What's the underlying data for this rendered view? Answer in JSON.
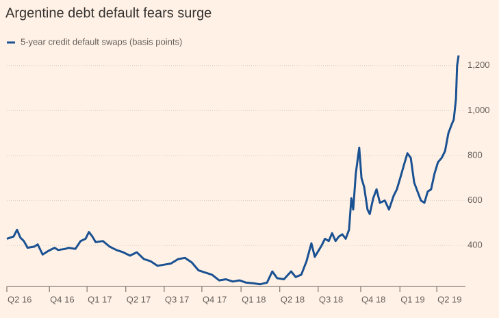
{
  "chart_data": {
    "type": "line",
    "title": "Argentine debt default fears surge",
    "series": [
      {
        "name": "5-year credit default swaps (basis points)",
        "color": "#1a5192",
        "x": [
          0,
          0.18,
          0.27,
          0.36,
          0.45,
          0.55,
          0.73,
          0.82,
          0.95,
          1.09,
          1.27,
          1.36,
          1.55,
          1.64,
          1.82,
          1.96,
          2.09,
          2.18,
          2.27,
          2.36,
          2.55,
          2.73,
          2.91,
          3.09,
          3.27,
          3.45,
          3.64,
          3.82,
          4,
          4.18,
          4.36,
          4.55,
          4.73,
          4.91,
          5.09,
          5.27,
          5.45,
          5.64,
          5.82,
          6,
          6.18,
          6.36,
          6.55,
          6.73,
          6.91,
          7.05,
          7.18,
          7.36,
          7.55,
          7.67,
          7.82,
          7.96,
          8.09,
          8.18,
          8.36,
          8.45,
          8.55,
          8.64,
          8.73,
          8.82,
          8.91,
          9,
          9.09,
          9.15,
          9.2,
          9.27,
          9.36,
          9.42,
          9.49,
          9.58,
          9.64,
          9.73,
          9.82,
          9.91,
          10.04,
          10.15,
          10.27,
          10.36,
          10.45,
          10.55,
          10.64,
          10.73,
          10.82,
          10.91,
          11,
          11.09,
          11.18,
          11.27,
          11.36,
          11.45,
          11.55,
          11.64,
          11.73,
          11.82,
          11.87,
          11.93,
          11.96,
          12
        ],
        "values": [
          430,
          440,
          470,
          435,
          420,
          390,
          395,
          405,
          360,
          375,
          390,
          380,
          385,
          390,
          385,
          420,
          430,
          460,
          440,
          415,
          420,
          395,
          380,
          370,
          355,
          370,
          340,
          330,
          310,
          315,
          320,
          340,
          345,
          325,
          290,
          280,
          270,
          245,
          250,
          240,
          245,
          235,
          232,
          228,
          235,
          285,
          255,
          250,
          285,
          260,
          270,
          330,
          410,
          350,
          400,
          430,
          420,
          455,
          420,
          440,
          450,
          430,
          470,
          610,
          560,
          720,
          835,
          700,
          660,
          560,
          540,
          610,
          650,
          590,
          600,
          560,
          620,
          650,
          700,
          760,
          810,
          790,
          680,
          640,
          600,
          590,
          640,
          650,
          720,
          770,
          790,
          820,
          900,
          940,
          960,
          1050,
          1200,
          1245
        ]
      }
    ],
    "xlim": [
      0,
      12
    ],
    "xticks": [
      {
        "value": 0,
        "label": "Q2 16"
      },
      {
        "value": 1.13,
        "label": "Q4 16"
      },
      {
        "value": 2.13,
        "label": "Q1 17"
      },
      {
        "value": 3.16,
        "label": "Q2 17"
      },
      {
        "value": 4.18,
        "label": "Q3 17"
      },
      {
        "value": 5.18,
        "label": "Q4 17"
      },
      {
        "value": 6.22,
        "label": "Q1 18"
      },
      {
        "value": 7.25,
        "label": "Q2 18"
      },
      {
        "value": 8.27,
        "label": "Q3 18"
      },
      {
        "value": 9.4,
        "label": "Q4 18"
      },
      {
        "value": 10.44,
        "label": "Q1 19"
      },
      {
        "value": 11.42,
        "label": "Q2 19"
      }
    ],
    "ylim": [
      218,
      1260
    ],
    "yticks": [
      400,
      600,
      800,
      {
        "value": 1000,
        "label": "1,000"
      },
      {
        "value": 1200,
        "label": "1,200"
      }
    ],
    "grid": true
  }
}
